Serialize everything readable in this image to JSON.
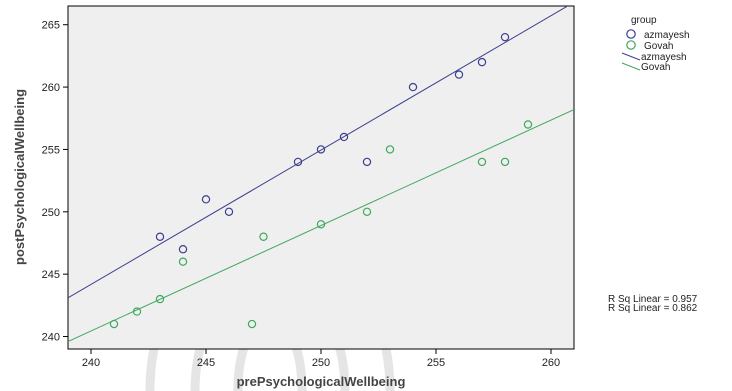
{
  "colors": {
    "azmayesh": "#3b3f8f",
    "govah": "#3fa860",
    "plot_background": "#efefef",
    "axis": "#000000"
  },
  "chart_data": {
    "type": "scatter",
    "xlabel": "prePsychologicalWellbeing",
    "ylabel": "postPsychologicalWellbeing",
    "xlim": [
      239,
      261
    ],
    "ylim": [
      239,
      266.5
    ],
    "xticks": [
      240,
      245,
      250,
      255,
      260
    ],
    "yticks": [
      240,
      245,
      250,
      255,
      260,
      265
    ],
    "grid": false,
    "legend_title": "group",
    "legend_position": "right",
    "legend_entries": [
      {
        "label": "azmayesh",
        "kind": "marker",
        "series": "azmayesh"
      },
      {
        "label": "Govah",
        "kind": "marker",
        "series": "Govah"
      },
      {
        "label": "azmayesh",
        "kind": "line",
        "series": "azmayesh"
      },
      {
        "label": "Govah",
        "kind": "line",
        "series": "Govah"
      }
    ],
    "series": [
      {
        "name": "azmayesh",
        "color": "#3b3f8f",
        "points": [
          [
            243,
            248
          ],
          [
            244,
            247
          ],
          [
            245,
            251
          ],
          [
            246,
            250
          ],
          [
            249,
            254
          ],
          [
            250,
            255
          ],
          [
            251,
            256
          ],
          [
            252,
            254
          ],
          [
            254,
            260
          ],
          [
            256,
            261
          ],
          [
            257,
            262
          ],
          [
            258,
            264
          ]
        ],
        "fit_line": [
          [
            239,
            243.1
          ],
          [
            261,
            266.8
          ]
        ]
      },
      {
        "name": "Govah",
        "color": "#3fa860",
        "points": [
          [
            241,
            241
          ],
          [
            242,
            242
          ],
          [
            243,
            243
          ],
          [
            244,
            246
          ],
          [
            247,
            241
          ],
          [
            247.5,
            248
          ],
          [
            250,
            249
          ],
          [
            252,
            250
          ],
          [
            253,
            255
          ],
          [
            257,
            254
          ],
          [
            258,
            254
          ],
          [
            259,
            257
          ]
        ],
        "fit_line": [
          [
            239,
            239.6
          ],
          [
            261,
            258.2
          ]
        ]
      }
    ],
    "annotations": [
      "R Sq Linear = 0.957",
      "R Sq Linear = 0.862"
    ]
  }
}
